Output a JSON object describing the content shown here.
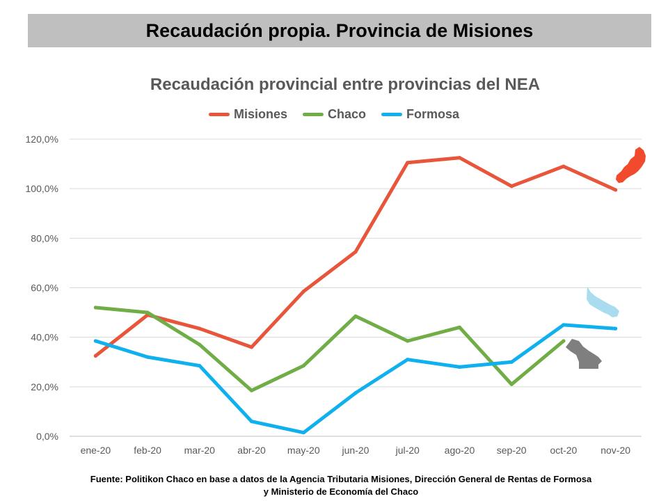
{
  "banner": {
    "title": "Recaudación propia. Provincia de Misiones"
  },
  "footer": {
    "line1": "Fuente: Politikon Chaco en base a datos de la Agencia Tributaria Misiones, Dirección General de Rentas de Formosa",
    "line2": "y Ministerio de Economía del Chaco"
  },
  "chart_data": {
    "type": "line",
    "title": "Recaudación provincial entre provincias del NEA",
    "xlabel": "",
    "ylabel": "",
    "categories": [
      "ene-20",
      "feb-20",
      "mar-20",
      "abr-20",
      "may-20",
      "jun-20",
      "jul-20",
      "ago-20",
      "sep-20",
      "oct-20",
      "nov-20"
    ],
    "y_ticks": [
      "0,0%",
      "20,0%",
      "40,0%",
      "60,0%",
      "80,0%",
      "100,0%",
      "120,0%"
    ],
    "ylim": [
      0,
      120
    ],
    "grid": "horizontal",
    "legend_position": "top",
    "series": [
      {
        "name": "Misiones",
        "color": "#e8553a",
        "values": [
          32.5,
          49.0,
          43.5,
          36.0,
          58.5,
          74.5,
          110.5,
          112.5,
          101.0,
          109.0,
          99.5
        ]
      },
      {
        "name": "Chaco",
        "color": "#70ad47",
        "values": [
          52.0,
          50.0,
          37.0,
          18.5,
          28.5,
          48.5,
          38.5,
          44.0,
          21.0,
          38.5,
          null
        ]
      },
      {
        "name": "Formosa",
        "color": "#0fb0ee",
        "values": [
          38.5,
          32.0,
          28.5,
          6.0,
          1.5,
          17.5,
          31.0,
          28.0,
          30.0,
          45.0,
          43.5
        ]
      }
    ],
    "map_icons": [
      {
        "name": "misiones-map-icon",
        "color": "#f24a2c"
      },
      {
        "name": "formosa-map-icon",
        "color": "#a9dcef"
      },
      {
        "name": "chaco-map-icon",
        "color": "#7f7f7f"
      }
    ]
  }
}
